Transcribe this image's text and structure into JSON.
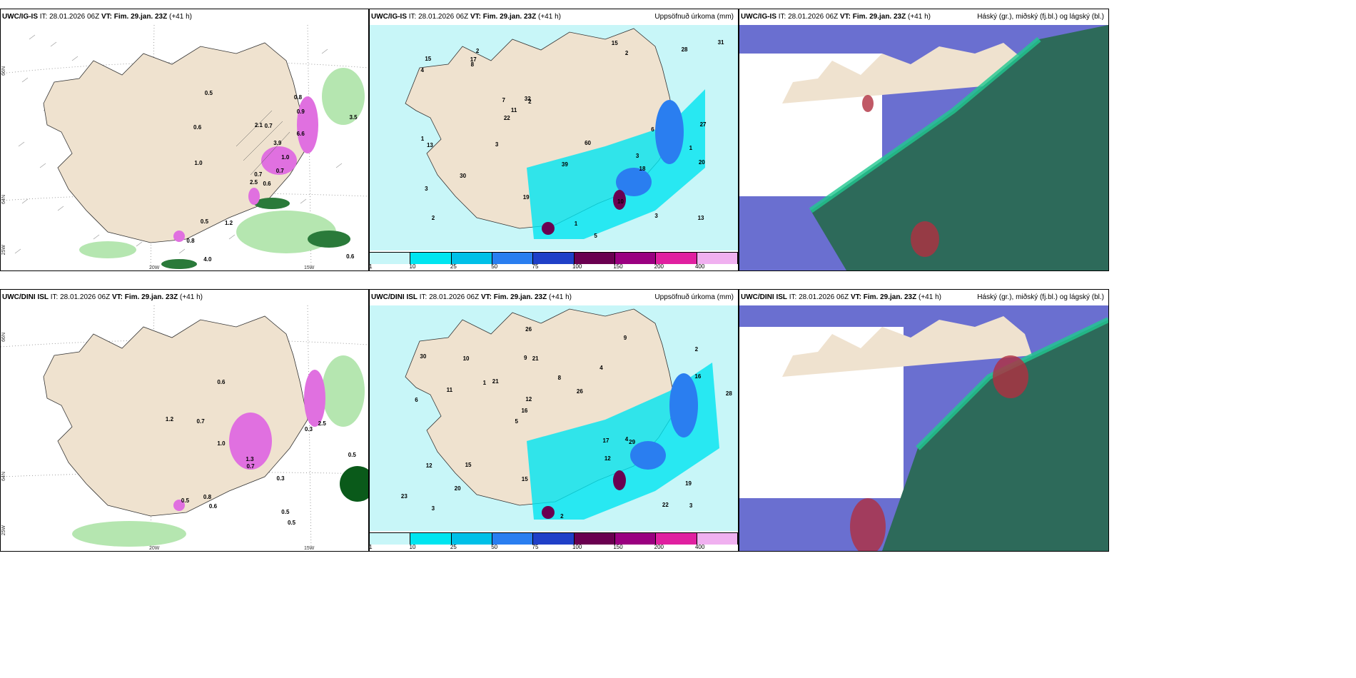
{
  "panels": [
    {
      "id": "p1",
      "model": "UWC/IG-IS",
      "it_label": "IT:",
      "it": "28.01.2026 06Z",
      "vt_label": "VT:",
      "vt": "Fim. 29.jan. 23Z",
      "lead": "(+41 h)",
      "title_right": "",
      "type": "precip-wind"
    },
    {
      "id": "p2",
      "model": "UWC/IG-IS",
      "it_label": "IT:",
      "it": "28.01.2026 06Z",
      "vt_label": "VT:",
      "vt": "Fim. 29.jan. 23Z",
      "lead": "(+41 h)",
      "title_right": "Uppsöfnuð úrkoma (mm)",
      "type": "accum"
    },
    {
      "id": "p3",
      "model": "UWC/IG-IS",
      "it_label": "IT:",
      "it": "28.01.2026 06Z",
      "vt_label": "VT:",
      "vt": "Fim. 29.jan. 23Z",
      "lead": "(+41 h)",
      "title_right": "Háský (gr.), miðský (fj.bl.) og lágský (bl.)",
      "type": "clouds"
    },
    {
      "id": "p4",
      "model": "UWC/DINI ISL",
      "it_label": "IT:",
      "it": "28.01.2026 06Z",
      "vt_label": "VT:",
      "vt": "Fim. 29.jan. 23Z",
      "lead": "(+41 h)",
      "title_right": "",
      "type": "precip-wind"
    },
    {
      "id": "p5",
      "model": "UWC/DINI ISL",
      "it_label": "IT:",
      "it": "28.01.2026 06Z",
      "vt_label": "VT:",
      "vt": "Fim. 29.jan. 23Z",
      "lead": "(+41 h)",
      "title_right": "Uppsöfnuð úrkoma (mm)",
      "type": "accum"
    },
    {
      "id": "p6",
      "model": "UWC/DINI ISL",
      "it_label": "IT:",
      "it": "28.01.2026 06Z",
      "vt_label": "VT:",
      "vt": "Fim. 29.jan. 23Z",
      "lead": "(+41 h)",
      "title_right": "Háský (gr.), miðský (fj.bl.) og lágský (bl.)",
      "type": "clouds"
    }
  ],
  "axes": {
    "lon_20": "20W",
    "lon_15": "15W",
    "lat_66": "66N",
    "lat_64": "64N",
    "lat_25": "25W"
  },
  "accum_legend": {
    "ticks": [
      "1",
      "10",
      "25",
      "50",
      "75",
      "100",
      "150",
      "200",
      "400"
    ],
    "colors": [
      "#c8f6f8",
      "#00e5f0",
      "#00c0e8",
      "#2a7ef0",
      "#2040c8",
      "#6a0050",
      "#9a0080",
      "#e020a0",
      "#f0b0f0"
    ]
  },
  "precip_values_p1": [
    "0.6",
    "0.6",
    "0.7",
    "0.8",
    "1.0",
    "1.2",
    "0.8",
    "0.7",
    "0.9",
    "0.7",
    "0.5",
    "0.6",
    "1.0",
    "3.5",
    "2.5",
    "6.6",
    "4.0",
    "2.1",
    "3.9",
    "0.5"
  ],
  "precip_values_p4": [
    "0.5",
    "0.6",
    "0.8",
    "0.7",
    "2.5",
    "0.5",
    "0.5",
    "1.0",
    "0.7",
    "0.6",
    "0.5",
    "1.2",
    "1.3",
    "0.3",
    "0.3"
  ],
  "accum_values_p2": [
    "3",
    "1",
    "2",
    "2",
    "2",
    "3",
    "3",
    "2",
    "7",
    "5",
    "4",
    "1",
    "15",
    "13",
    "19",
    "27",
    "39",
    "60",
    "32",
    "30",
    "31",
    "28",
    "22",
    "20",
    "15",
    "17",
    "18",
    "13",
    "8",
    "6",
    "1",
    "10",
    "11",
    "3"
  ],
  "accum_values_p5": [
    "3",
    "6",
    "2",
    "5",
    "4",
    "3",
    "9",
    "8",
    "12",
    "21",
    "23",
    "20",
    "21",
    "26",
    "29",
    "30",
    "26",
    "28",
    "17",
    "16",
    "16",
    "15",
    "12",
    "10",
    "9",
    "15",
    "22",
    "19",
    "4",
    "2",
    "1",
    "11",
    "12"
  ],
  "colors": {
    "land": "#efe2cf",
    "sea": "#ffffff",
    "cyan_light": "#c8f6f8",
    "cyan": "#00e5f0",
    "magenta": "#e060e0",
    "green_light": "#a8e0a8",
    "green_dark": "#0a5a1a",
    "cloud_blue": "#5058c8",
    "cloud_green": "#20c890",
    "cloud_red": "#b03040",
    "cloud_dark": "#2a5a50"
  }
}
